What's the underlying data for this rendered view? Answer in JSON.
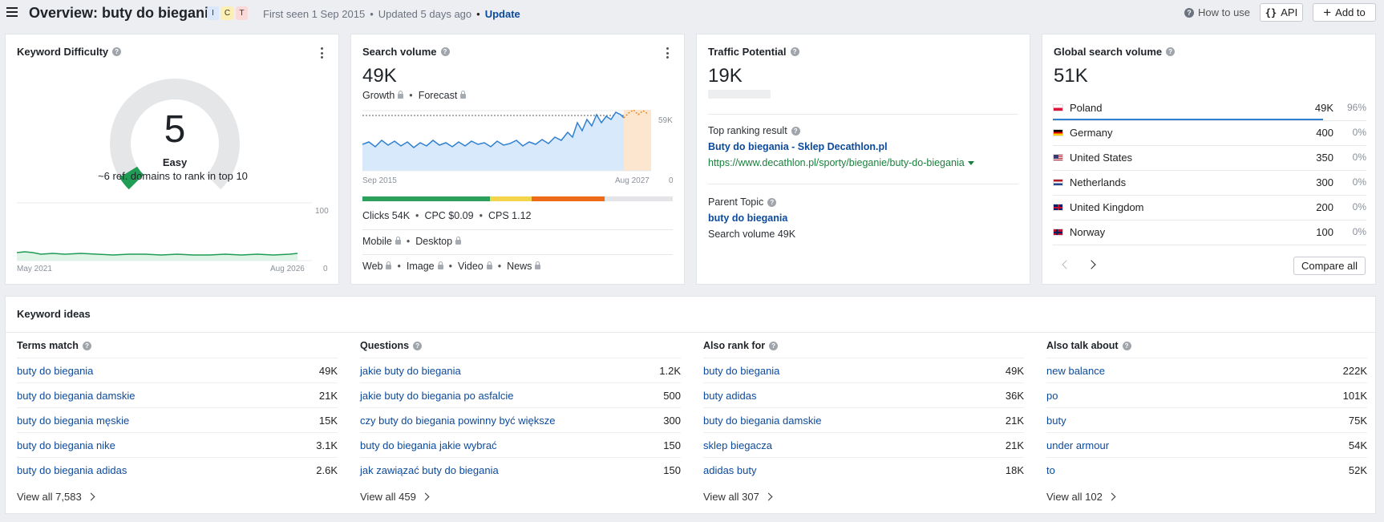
{
  "header": {
    "title": "Overview: buty do biegania",
    "intents": [
      {
        "letter": "I",
        "color": "#dbe8fb"
      },
      {
        "letter": "C",
        "color": "#fdeeb3"
      },
      {
        "letter": "T",
        "color": "#fcd9d9"
      }
    ],
    "first_seen": "First seen 1 Sep 2015",
    "updated": "Updated 5 days ago",
    "update_link": "Update",
    "how_to_use": "How to use",
    "api_label": "API",
    "add_to_label": "Add to"
  },
  "kd": {
    "title": "Keyword Difficulty",
    "value": "5",
    "level": "Easy",
    "note": "~6 ref. domains to rank in top 10",
    "score": 5,
    "chart": {
      "y_max": "100",
      "y_min": "0",
      "x_start": "May 2021",
      "x_end": "Aug 2026"
    }
  },
  "sv": {
    "title": "Search volume",
    "value": "49K",
    "growth": "Growth",
    "forecast": "Forecast",
    "chart": {
      "ref_label": "59K",
      "zero_label": "0",
      "x_start": "Sep 2015",
      "x_end": "Aug 2027"
    },
    "clicks": "Clicks 54K",
    "cpc": "CPC $0.09",
    "cps": "CPS 1.12",
    "mobile": "Mobile",
    "desktop": "Desktop",
    "web": "Web",
    "image": "Image",
    "video": "Video",
    "news": "News",
    "bar_segments": [
      {
        "share": 0.41,
        "color": "#2ca05a"
      },
      {
        "share": 0.135,
        "color": "#f3d44b"
      },
      {
        "share": 0.235,
        "color": "#ef6b1c"
      },
      {
        "share": 0.22,
        "color": "#e3e5e8"
      }
    ]
  },
  "tp": {
    "title": "Traffic Potential",
    "value": "19K",
    "top_label": "Top ranking result",
    "top_title": "Buty do biegania - Sklep Decathlon.pl",
    "top_url": "https://www.decathlon.pl/sporty/bieganie/buty-do-biegania",
    "parent_label": "Parent Topic",
    "parent_keyword": "buty do biegania",
    "parent_volume": "Search volume 49K"
  },
  "gsv": {
    "title": "Global search volume",
    "value": "51K",
    "countries": [
      {
        "name": "Poland",
        "value": "49K",
        "pct": "96%",
        "share": 0.96
      },
      {
        "name": "Germany",
        "value": "400",
        "pct": "0%",
        "share": 0
      },
      {
        "name": "United States",
        "value": "350",
        "pct": "0%",
        "share": 0
      },
      {
        "name": "Netherlands",
        "value": "300",
        "pct": "0%",
        "share": 0
      },
      {
        "name": "United Kingdom",
        "value": "200",
        "pct": "0%",
        "share": 0
      },
      {
        "name": "Norway",
        "value": "100",
        "pct": "0%",
        "share": 0
      }
    ],
    "compare_all": "Compare all"
  },
  "ideas": {
    "title": "Keyword ideas",
    "columns": [
      {
        "title": "Terms match",
        "rows": [
          {
            "kw": "buty do biegania",
            "vol": "49K"
          },
          {
            "kw": "buty do biegania damskie",
            "vol": "21K"
          },
          {
            "kw": "buty do biegania męskie",
            "vol": "15K"
          },
          {
            "kw": "buty do biegania nike",
            "vol": "3.1K"
          },
          {
            "kw": "buty do biegania adidas",
            "vol": "2.6K"
          }
        ],
        "view_all": "View all 7,583"
      },
      {
        "title": "Questions",
        "rows": [
          {
            "kw": "jakie buty do biegania",
            "vol": "1.2K"
          },
          {
            "kw": "jakie buty do biegania po asfalcie",
            "vol": "500"
          },
          {
            "kw": "czy buty do biegania powinny być większe",
            "vol": "300"
          },
          {
            "kw": "buty do biegania jakie wybrać",
            "vol": "150"
          },
          {
            "kw": "jak zawiązać buty do biegania",
            "vol": "150"
          }
        ],
        "view_all": "View all 459"
      },
      {
        "title": "Also rank for",
        "rows": [
          {
            "kw": "buty do biegania",
            "vol": "49K"
          },
          {
            "kw": "buty adidas",
            "vol": "36K"
          },
          {
            "kw": "buty do biegania damskie",
            "vol": "21K"
          },
          {
            "kw": "sklep biegacza",
            "vol": "21K"
          },
          {
            "kw": "adidas buty",
            "vol": "18K"
          }
        ],
        "view_all": "View all 307"
      },
      {
        "title": "Also talk about",
        "rows": [
          {
            "kw": "new balance",
            "vol": "222K"
          },
          {
            "kw": "po",
            "vol": "101K"
          },
          {
            "kw": "buty",
            "vol": "75K"
          },
          {
            "kw": "under armour",
            "vol": "54K"
          },
          {
            "kw": "to",
            "vol": "52K"
          }
        ],
        "view_all": "View all 102"
      }
    ]
  }
}
